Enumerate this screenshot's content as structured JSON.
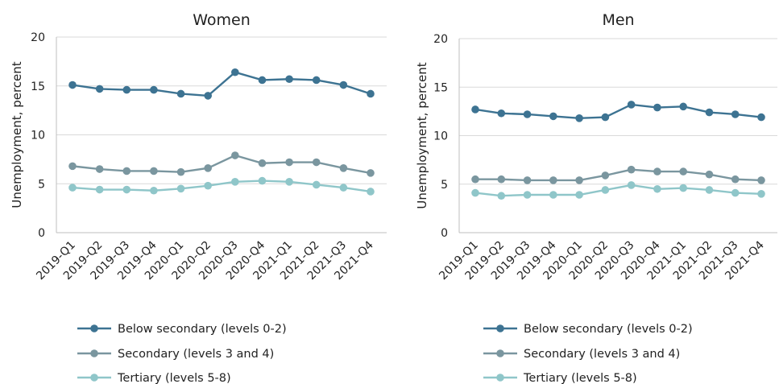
{
  "chart_data": [
    {
      "type": "line",
      "title": "Women",
      "xlabel": "",
      "ylabel": "Unemployment, percent",
      "ylim": [
        0,
        20
      ],
      "yticks": [
        0,
        5,
        10,
        15,
        20
      ],
      "grid": true,
      "legend": "bottom",
      "categories": [
        "2019-Q1",
        "2019-Q2",
        "2019-Q3",
        "2019-Q4",
        "2020-Q1",
        "2020-Q2",
        "2020-Q3",
        "2020-Q4",
        "2021-Q1",
        "2021-Q2",
        "2021-Q3",
        "2021-Q4"
      ],
      "series": [
        {
          "name": "Below secondary (levels 0-2)",
          "color": "#3d7392",
          "values": [
            15.1,
            14.7,
            14.6,
            14.6,
            14.2,
            14.0,
            16.4,
            15.6,
            15.7,
            15.6,
            15.1,
            14.2
          ]
        },
        {
          "name": "Secondary (levels 3 and 4)",
          "color": "#7a969f",
          "values": [
            6.8,
            6.5,
            6.3,
            6.3,
            6.2,
            6.6,
            7.9,
            7.1,
            7.2,
            7.2,
            6.6,
            6.1
          ]
        },
        {
          "name": "Tertiary (levels 5-8)",
          "color": "#8fc6c9",
          "values": [
            4.6,
            4.4,
            4.4,
            4.3,
            4.5,
            4.8,
            5.2,
            5.3,
            5.2,
            4.9,
            4.6,
            4.2
          ]
        }
      ]
    },
    {
      "type": "line",
      "title": "Men",
      "xlabel": "",
      "ylabel": "Unemployment, percent",
      "ylim": [
        0,
        20
      ],
      "yticks": [
        0,
        5,
        10,
        15,
        20
      ],
      "grid": true,
      "legend": "bottom",
      "categories": [
        "2019-Q1",
        "2019-Q2",
        "2019-Q3",
        "2019-Q4",
        "2020-Q1",
        "2020-Q2",
        "2020-Q3",
        "2020-Q4",
        "2021-Q1",
        "2021-Q2",
        "2021-Q3",
        "2021-Q4"
      ],
      "series": [
        {
          "name": "Below secondary (levels 0-2)",
          "color": "#3d7392",
          "values": [
            12.7,
            12.3,
            12.2,
            12.0,
            11.8,
            11.9,
            13.2,
            12.9,
            13.0,
            12.4,
            12.2,
            11.9
          ]
        },
        {
          "name": "Secondary (levels 3 and 4)",
          "color": "#7a969f",
          "values": [
            5.5,
            5.5,
            5.4,
            5.4,
            5.4,
            5.9,
            6.5,
            6.3,
            6.3,
            6.0,
            5.5,
            5.4
          ]
        },
        {
          "name": "Tertiary (levels 5-8)",
          "color": "#8fc6c9",
          "values": [
            4.1,
            3.8,
            3.9,
            3.9,
            3.9,
            4.4,
            4.9,
            4.5,
            4.6,
            4.4,
            4.1,
            4.0
          ]
        }
      ]
    }
  ]
}
